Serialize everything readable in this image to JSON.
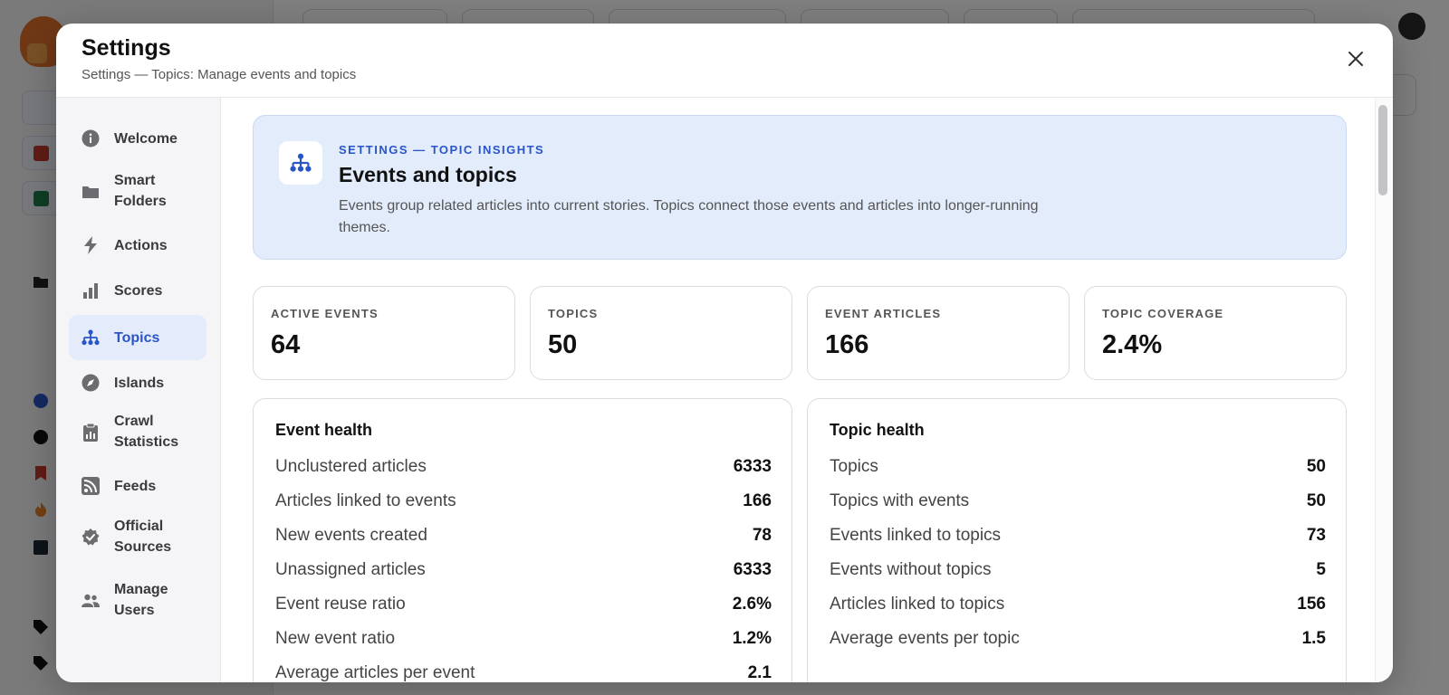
{
  "modal": {
    "title": "Settings",
    "subtitle": "Settings — Topics: Manage events and topics"
  },
  "nav": {
    "items": [
      {
        "label": "Welcome",
        "icon": "info-icon"
      },
      {
        "label": "Smart\nFolders",
        "icon": "folder-icon"
      },
      {
        "label": "Actions",
        "icon": "lightning-icon"
      },
      {
        "label": "Scores",
        "icon": "bar-chart-icon"
      },
      {
        "label": "Topics",
        "icon": "hierarchy-icon",
        "active": true
      },
      {
        "label": "Islands",
        "icon": "compass-icon"
      },
      {
        "label": "Crawl\nStatistics",
        "icon": "clipboard-icon"
      },
      {
        "label": "Feeds",
        "icon": "rss-icon"
      },
      {
        "label": "Official\nSources",
        "icon": "verified-badge-icon"
      },
      {
        "label": "Manage\nUsers",
        "icon": "users-icon"
      }
    ]
  },
  "hero": {
    "kicker": "SETTINGS — TOPIC INSIGHTS",
    "title": "Events and topics",
    "description": "Events group related articles into current stories. Topics connect those events and articles into longer-running themes."
  },
  "stats": [
    {
      "label": "ACTIVE EVENTS",
      "value": "64"
    },
    {
      "label": "TOPICS",
      "value": "50"
    },
    {
      "label": "EVENT ARTICLES",
      "value": "166"
    },
    {
      "label": "TOPIC COVERAGE",
      "value": "2.4%"
    }
  ],
  "event_health": {
    "title": "Event health",
    "rows": [
      {
        "label": "Unclustered articles",
        "value": "6333"
      },
      {
        "label": "Articles linked to events",
        "value": "166"
      },
      {
        "label": "New events created",
        "value": "78"
      },
      {
        "label": "Unassigned articles",
        "value": "6333"
      },
      {
        "label": "Event reuse ratio",
        "value": "2.6%"
      },
      {
        "label": "New event ratio",
        "value": "1.2%"
      },
      {
        "label": "Average articles per event",
        "value": "2.1"
      }
    ]
  },
  "topic_health": {
    "title": "Topic health",
    "rows": [
      {
        "label": "Topics",
        "value": "50"
      },
      {
        "label": "Topics with events",
        "value": "50"
      },
      {
        "label": "Events linked to topics",
        "value": "73"
      },
      {
        "label": "Events without topics",
        "value": "5"
      },
      {
        "label": "Articles linked to topics",
        "value": "156"
      },
      {
        "label": "Average events per topic",
        "value": "1.5"
      }
    ]
  },
  "colors": {
    "accent": "#2a55c9",
    "hero_bg": "#e3ecfb",
    "nav_active_bg": "#e4ecfb"
  }
}
